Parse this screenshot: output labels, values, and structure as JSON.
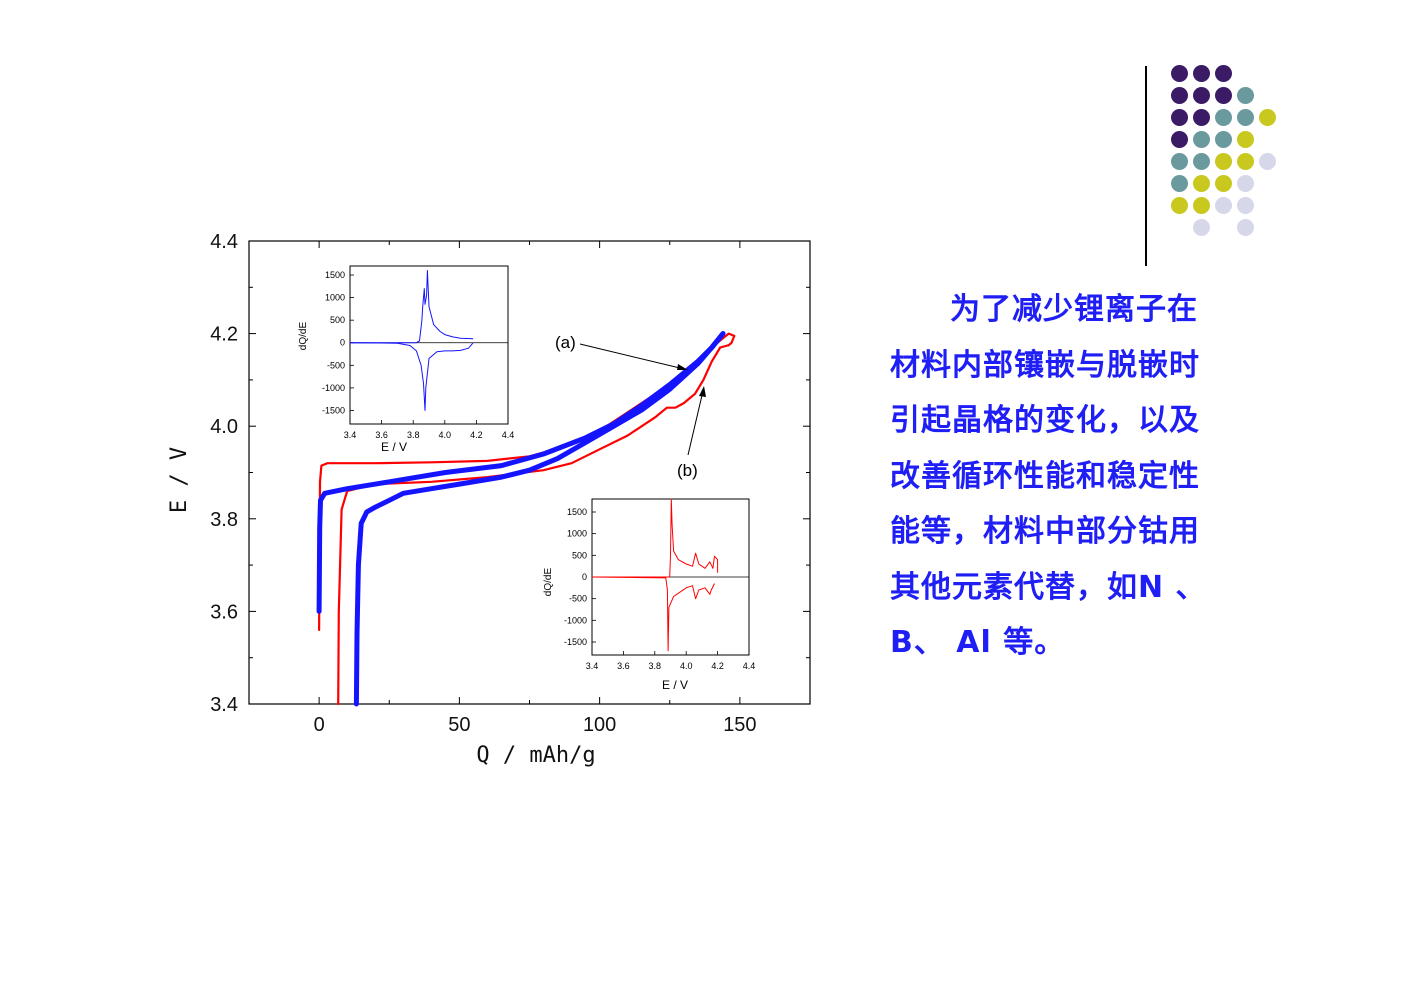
{
  "colors": {
    "dark_purple": "#3b1a66",
    "teal": "#6a9a9e",
    "olive_yellow": "#c8c81e",
    "lavender": "#d7d7ea",
    "text_blue": "#1f1ff5",
    "series_red": "#ff0000",
    "series_blue": "#1414ff"
  },
  "decoration": {
    "dot_grid": [
      [
        "dark_purple",
        "dark_purple",
        "dark_purple",
        "",
        "",
        ""
      ],
      [
        "dark_purple",
        "dark_purple",
        "dark_purple",
        "teal",
        "",
        ""
      ],
      [
        "dark_purple",
        "dark_purple",
        "teal",
        "teal",
        "olive_yellow",
        ""
      ],
      [
        "dark_purple",
        "teal",
        "teal",
        "olive_yellow",
        "",
        ""
      ],
      [
        "teal",
        "teal",
        "olive_yellow",
        "olive_yellow",
        "lavender",
        ""
      ],
      [
        "teal",
        "olive_yellow",
        "olive_yellow",
        "lavender",
        "",
        ""
      ],
      [
        "olive_yellow",
        "olive_yellow",
        "lavender",
        "lavender",
        "",
        ""
      ],
      [
        "",
        "lavender",
        "",
        "lavender",
        "",
        ""
      ]
    ]
  },
  "side_text": {
    "lines": [
      "为了减少锂离子在",
      "材料内部镶嵌与脱嵌时",
      "引起晶格的变化，以及",
      "改善循环性能和稳定性",
      "能等，材料中部分钴用",
      "其他元素代替，如N 、",
      "B、 Al 等。"
    ]
  },
  "chart_data": [
    {
      "type": "line",
      "xlabel": "Q / mAh/g",
      "ylabel": "E / V",
      "xlim": [
        -25,
        175
      ],
      "ylim": [
        3.4,
        4.4
      ],
      "xticks": [
        "0",
        "50",
        "100",
        "150"
      ],
      "yticks": [
        "3.4",
        "3.6",
        "3.8",
        "4.0",
        "4.2",
        "4.4"
      ],
      "annotations": [
        "(a)",
        "(b)"
      ],
      "series": [
        {
          "color": "series_red",
          "charge": [
            [
              0,
              3.56
            ],
            [
              0.3,
              3.88
            ],
            [
              0.8,
              3.915
            ],
            [
              3,
              3.92
            ],
            [
              20,
              3.92
            ],
            [
              40,
              3.922
            ],
            [
              60,
              3.925
            ],
            [
              75,
              3.935
            ],
            [
              90,
              3.96
            ],
            [
              100,
              3.99
            ],
            [
              110,
              4.03
            ],
            [
              120,
              4.07
            ],
            [
              125,
              4.09
            ],
            [
              130,
              4.11
            ],
            [
              135,
              4.14
            ],
            [
              140,
              4.17
            ],
            [
              144,
              4.19
            ],
            [
              146,
              4.2
            ],
            [
              148,
              4.195
            ],
            [
              147,
              4.18
            ],
            [
              146,
              4.175
            ]
          ],
          "discharge": [
            [
              146,
              4.175
            ],
            [
              143,
              4.17
            ],
            [
              140,
              4.14
            ],
            [
              137,
              4.1
            ],
            [
              134,
              4.07
            ],
            [
              130,
              4.05
            ],
            [
              127,
              4.04
            ],
            [
              124,
              4.04
            ],
            [
              120,
              4.02
            ],
            [
              110,
              3.98
            ],
            [
              100,
              3.95
            ],
            [
              90,
              3.92
            ],
            [
              80,
              3.905
            ],
            [
              60,
              3.89
            ],
            [
              40,
              3.88
            ],
            [
              20,
              3.875
            ],
            [
              10,
              3.86
            ],
            [
              8,
              3.82
            ],
            [
              7,
              3.6
            ],
            [
              6.8,
              3.4
            ]
          ]
        },
        {
          "color": "series_blue",
          "charge": [
            [
              0,
              3.6
            ],
            [
              0.2,
              3.78
            ],
            [
              0.5,
              3.84
            ],
            [
              2,
              3.855
            ],
            [
              10,
              3.865
            ],
            [
              25,
              3.88
            ],
            [
              45,
              3.9
            ],
            [
              65,
              3.915
            ],
            [
              80,
              3.94
            ],
            [
              95,
              3.975
            ],
            [
              105,
              4.005
            ],
            [
              115,
              4.045
            ],
            [
              125,
              4.09
            ],
            [
              135,
              4.14
            ],
            [
              140,
              4.17
            ],
            [
              144,
              4.2
            ]
          ],
          "discharge": [
            [
              144,
              4.2
            ],
            [
              140,
              4.17
            ],
            [
              135,
              4.135
            ],
            [
              125,
              4.08
            ],
            [
              115,
              4.035
            ],
            [
              105,
              4.0
            ],
            [
              95,
              3.965
            ],
            [
              85,
              3.93
            ],
            [
              75,
              3.905
            ],
            [
              65,
              3.89
            ],
            [
              50,
              3.875
            ],
            [
              40,
              3.865
            ],
            [
              30,
              3.855
            ],
            [
              25,
              3.84
            ],
            [
              20,
              3.825
            ],
            [
              17,
              3.815
            ],
            [
              15,
              3.79
            ],
            [
              14,
              3.7
            ],
            [
              13.5,
              3.55
            ],
            [
              13.3,
              3.4
            ]
          ]
        }
      ]
    },
    {
      "type": "line",
      "ylabel": "dQ/dE",
      "xlabel": "E / V",
      "xlim": [
        3.4,
        4.4
      ],
      "ylim": [
        -1800,
        1700
      ],
      "xticks": [
        "3.4",
        "3.6",
        "3.8",
        "4.0",
        "4.2",
        "4.4"
      ],
      "yticks": [
        "1500",
        "1000",
        "500",
        "0",
        "-500",
        "-1000",
        "-1500"
      ],
      "series": [
        {
          "color": "series_blue",
          "upper": [
            [
              3.4,
              0
            ],
            [
              3.82,
              0
            ],
            [
              3.84,
              40
            ],
            [
              3.855,
              500
            ],
            [
              3.86,
              800
            ],
            [
              3.87,
              1200
            ],
            [
              3.875,
              850
            ],
            [
              3.885,
              1050
            ],
            [
              3.89,
              1600
            ],
            [
              3.9,
              800
            ],
            [
              3.93,
              400
            ],
            [
              3.97,
              250
            ],
            [
              4.0,
              180
            ],
            [
              4.05,
              130
            ],
            [
              4.1,
              100
            ],
            [
              4.18,
              90
            ]
          ],
          "lower": [
            [
              3.4,
              0
            ],
            [
              3.7,
              -10
            ],
            [
              3.78,
              -60
            ],
            [
              3.82,
              -180
            ],
            [
              3.85,
              -500
            ],
            [
              3.865,
              -900
            ],
            [
              3.875,
              -1500
            ],
            [
              3.88,
              -1000
            ],
            [
              3.9,
              -350
            ],
            [
              3.95,
              -200
            ],
            [
              4.0,
              -180
            ],
            [
              4.05,
              -180
            ],
            [
              4.1,
              -170
            ],
            [
              4.15,
              -120
            ],
            [
              4.18,
              0
            ]
          ]
        }
      ]
    },
    {
      "type": "line",
      "ylabel": "dQ/dE",
      "xlabel": "E / V",
      "xlim": [
        3.4,
        4.4
      ],
      "ylim": [
        -1800,
        1800
      ],
      "xticks": [
        "3.4",
        "3.6",
        "3.8",
        "4.0",
        "4.2",
        "4.4"
      ],
      "yticks": [
        "1500",
        "1000",
        "500",
        "0",
        "-500",
        "-1000",
        "-1500"
      ],
      "series": [
        {
          "color": "series_red",
          "upper": [
            [
              3.4,
              0
            ],
            [
              3.895,
              0
            ],
            [
              3.9,
              500
            ],
            [
              3.905,
              1800
            ],
            [
              3.91,
              1200
            ],
            [
              3.92,
              600
            ],
            [
              3.95,
              400
            ],
            [
              4.0,
              300
            ],
            [
              4.04,
              250
            ],
            [
              4.06,
              550
            ],
            [
              4.08,
              300
            ],
            [
              4.12,
              200
            ],
            [
              4.15,
              350
            ],
            [
              4.17,
              200
            ],
            [
              4.18,
              480
            ],
            [
              4.2,
              400
            ],
            [
              4.2,
              100
            ]
          ],
          "lower": [
            [
              3.4,
              0
            ],
            [
              3.87,
              -20
            ],
            [
              3.88,
              -300
            ],
            [
              3.885,
              -1700
            ],
            [
              3.89,
              -700
            ],
            [
              3.92,
              -450
            ],
            [
              3.96,
              -350
            ],
            [
              4.0,
              -250
            ],
            [
              4.04,
              -200
            ],
            [
              4.06,
              -500
            ],
            [
              4.08,
              -300
            ],
            [
              4.12,
              -250
            ],
            [
              4.15,
              -400
            ],
            [
              4.16,
              -300
            ],
            [
              4.18,
              -150
            ]
          ]
        }
      ]
    }
  ]
}
